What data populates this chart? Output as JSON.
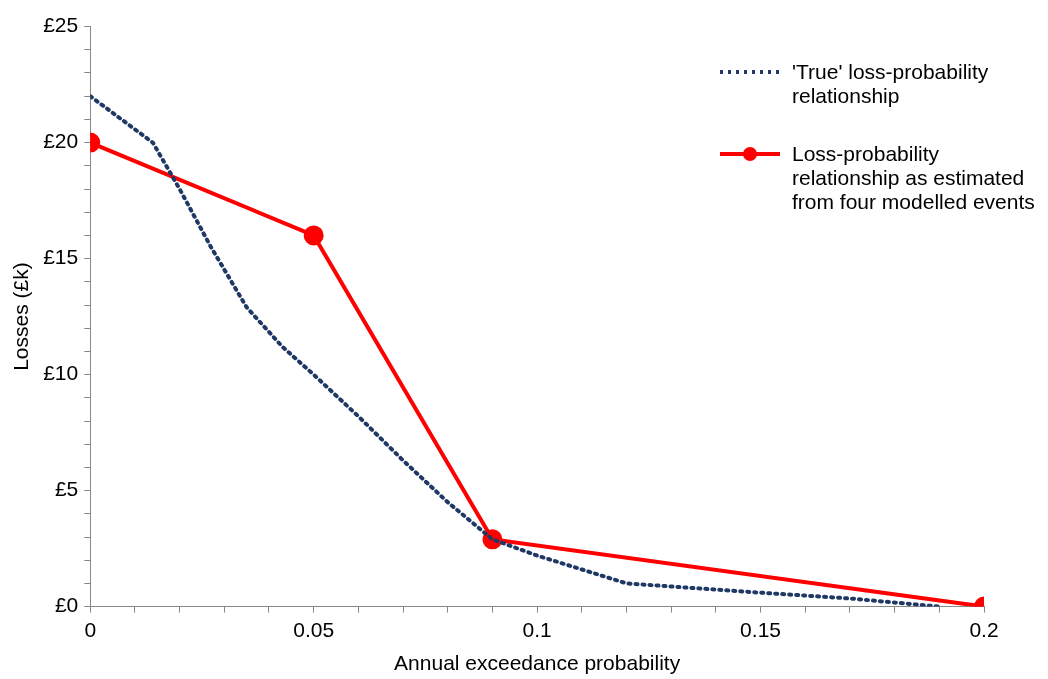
{
  "chart_data": {
    "type": "line",
    "xlabel": "Annual exceedance probability",
    "ylabel": "Losses (£k)",
    "xlim": [
      0,
      0.2
    ],
    "ylim": [
      0,
      25
    ],
    "xticks": [
      0,
      {
        "value": 0.01,
        "label": null
      },
      {
        "value": 0.02,
        "label": null
      },
      {
        "value": 0.03,
        "label": null
      },
      {
        "value": 0.04,
        "label": null
      },
      0.05,
      {
        "value": 0.06,
        "label": null
      },
      {
        "value": 0.07,
        "label": null
      },
      {
        "value": 0.08,
        "label": null
      },
      {
        "value": 0.09,
        "label": null
      },
      0.1,
      {
        "value": 0.11,
        "label": null
      },
      {
        "value": 0.12,
        "label": null
      },
      {
        "value": 0.13,
        "label": null
      },
      {
        "value": 0.14,
        "label": null
      },
      0.15,
      {
        "value": 0.16,
        "label": null
      },
      {
        "value": 0.17,
        "label": null
      },
      {
        "value": 0.18,
        "label": null
      },
      {
        "value": 0.19,
        "label": null
      },
      0.2
    ],
    "yticks": [
      {
        "value": 0,
        "label": "£0"
      },
      {
        "value": 1,
        "label": null
      },
      {
        "value": 2,
        "label": null
      },
      {
        "value": 3,
        "label": null
      },
      {
        "value": 4,
        "label": null
      },
      {
        "value": 5,
        "label": "£5"
      },
      {
        "value": 6,
        "label": null
      },
      {
        "value": 7,
        "label": null
      },
      {
        "value": 8,
        "label": null
      },
      {
        "value": 9,
        "label": null
      },
      {
        "value": 10,
        "label": "£10"
      },
      {
        "value": 11,
        "label": null
      },
      {
        "value": 12,
        "label": null
      },
      {
        "value": 13,
        "label": null
      },
      {
        "value": 14,
        "label": null
      },
      {
        "value": 15,
        "label": "£15"
      },
      {
        "value": 16,
        "label": null
      },
      {
        "value": 17,
        "label": null
      },
      {
        "value": 18,
        "label": null
      },
      {
        "value": 19,
        "label": null
      },
      {
        "value": 20,
        "label": "£20"
      },
      {
        "value": 21,
        "label": null
      },
      {
        "value": 22,
        "label": null
      },
      {
        "value": 23,
        "label": null
      },
      {
        "value": 24,
        "label": null
      },
      {
        "value": 25,
        "label": "£25"
      }
    ],
    "grid": false,
    "legend": "top right",
    "series": [
      {
        "name": "'True' loss-probability relationship",
        "color": "#1f3864",
        "line_style": "dotted",
        "marker": "none",
        "x": [
          0,
          0.014,
          0.02,
          0.027,
          0.035,
          0.043,
          0.05,
          0.06,
          0.07,
          0.08,
          0.09,
          0.1,
          0.11,
          0.12,
          0.135,
          0.15,
          0.17,
          0.19
        ],
        "values": [
          22,
          20,
          18,
          15.5,
          12.9,
          11.2,
          10,
          8.2,
          6.3,
          4.5,
          2.9,
          2.2,
          1.6,
          1,
          0.8,
          0.6,
          0.35,
          0
        ]
      },
      {
        "name": "Loss-probability relationship as estimated from four modelled events",
        "color": "#ff0000",
        "line_style": "solid",
        "marker": "circle",
        "x": [
          0,
          0.05,
          0.09,
          0.2
        ],
        "values": [
          20,
          16,
          2.9,
          0
        ]
      }
    ]
  }
}
